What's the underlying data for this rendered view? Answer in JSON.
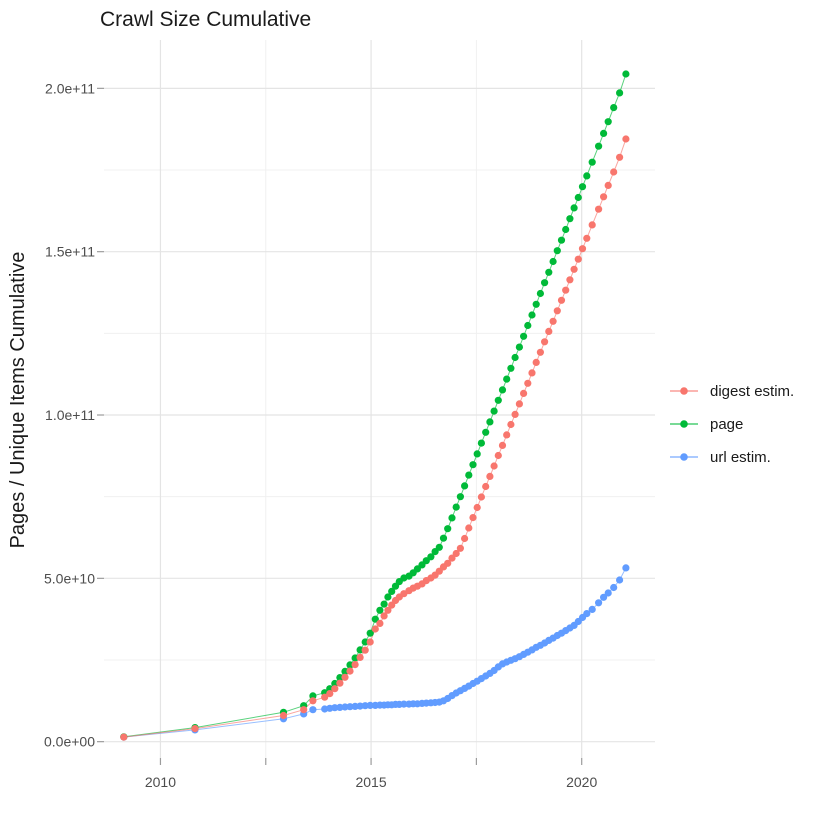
{
  "figure": {
    "background": "#FFFFFF"
  },
  "chart_data": {
    "type": "scatter",
    "title": "Crawl Size Cumulative",
    "xlabel": "",
    "ylabel": "Pages / Unique Items Cumulative",
    "values_unit": "1e10 pages/items (y values below are in units of 1e10)",
    "grid": true,
    "legend_position": "right",
    "x_axis": {
      "domain": [
        2008.66,
        2021.74
      ],
      "major_breaks": [
        2010,
        2015,
        2020
      ],
      "major_labels": [
        "2010",
        "2015",
        "2020"
      ],
      "minor_breaks": [
        2012.5,
        2017.5
      ]
    },
    "y_axis": {
      "domain": [
        -0.5,
        21.48
      ],
      "major_breaks": [
        0,
        5,
        10,
        15,
        20
      ],
      "major_labels": [
        "0.0e+00",
        "5.0e+10",
        "1.0e+11",
        "1.5e+11",
        "2.0e+11"
      ],
      "minor_breaks": [
        2.5,
        7.5,
        12.5,
        17.5
      ]
    },
    "colors": {
      "digest": "#F8766D",
      "page": "#00BA38",
      "url": "#619CFF"
    },
    "grid_major_color": "#E4E4E4",
    "grid_minor_color": "#F0F0F0",
    "tick_color": "#9c9c9c",
    "series": [
      {
        "name": "digest estim.",
        "color": "#F8766D",
        "points": [
          [
            2009.13,
            0.14
          ],
          [
            2010.82,
            0.4
          ],
          [
            2012.92,
            0.8
          ],
          [
            2013.4,
            0.98
          ],
          [
            2013.62,
            1.25
          ],
          [
            2013.9,
            1.36
          ],
          [
            2014.02,
            1.47
          ],
          [
            2014.14,
            1.62
          ],
          [
            2014.26,
            1.79
          ],
          [
            2014.38,
            1.97
          ],
          [
            2014.5,
            2.16
          ],
          [
            2014.62,
            2.36
          ],
          [
            2014.74,
            2.58
          ],
          [
            2014.86,
            2.8
          ],
          [
            2014.98,
            3.05
          ],
          [
            2015.1,
            3.45
          ],
          [
            2015.21,
            3.62
          ],
          [
            2015.31,
            3.85
          ],
          [
            2015.4,
            4.02
          ],
          [
            2015.49,
            4.18
          ],
          [
            2015.58,
            4.32
          ],
          [
            2015.67,
            4.43
          ],
          [
            2015.78,
            4.53
          ],
          [
            2015.9,
            4.62
          ],
          [
            2016.0,
            4.7
          ],
          [
            2016.1,
            4.76
          ],
          [
            2016.21,
            4.83
          ],
          [
            2016.31,
            4.93
          ],
          [
            2016.42,
            5.01
          ],
          [
            2016.52,
            5.1
          ],
          [
            2016.62,
            5.22
          ],
          [
            2016.72,
            5.35
          ],
          [
            2016.82,
            5.46
          ],
          [
            2016.92,
            5.62
          ],
          [
            2017.02,
            5.76
          ],
          [
            2017.12,
            5.92
          ],
          [
            2017.22,
            6.22
          ],
          [
            2017.32,
            6.54
          ],
          [
            2017.42,
            6.86
          ],
          [
            2017.52,
            7.17
          ],
          [
            2017.62,
            7.49
          ],
          [
            2017.72,
            7.81
          ],
          [
            2017.82,
            8.12
          ],
          [
            2017.92,
            8.44
          ],
          [
            2018.02,
            8.76
          ],
          [
            2018.12,
            9.07
          ],
          [
            2018.22,
            9.39
          ],
          [
            2018.32,
            9.71
          ],
          [
            2018.42,
            10.02
          ],
          [
            2018.52,
            10.34
          ],
          [
            2018.62,
            10.66
          ],
          [
            2018.72,
            10.97
          ],
          [
            2018.82,
            11.29
          ],
          [
            2018.92,
            11.61
          ],
          [
            2019.02,
            11.92
          ],
          [
            2019.12,
            12.24
          ],
          [
            2019.22,
            12.56
          ],
          [
            2019.32,
            12.87
          ],
          [
            2019.42,
            13.19
          ],
          [
            2019.52,
            13.51
          ],
          [
            2019.62,
            13.82
          ],
          [
            2019.72,
            14.14
          ],
          [
            2019.82,
            14.46
          ],
          [
            2019.92,
            14.77
          ],
          [
            2020.02,
            15.09
          ],
          [
            2020.12,
            15.41
          ],
          [
            2020.25,
            15.82
          ],
          [
            2020.4,
            16.3
          ],
          [
            2020.52,
            16.68
          ],
          [
            2020.63,
            17.03
          ],
          [
            2020.76,
            17.44
          ],
          [
            2020.9,
            17.89
          ],
          [
            2021.05,
            18.45
          ]
        ]
      },
      {
        "name": "page",
        "color": "#00BA38",
        "points": [
          [
            2009.13,
            0.15
          ],
          [
            2010.82,
            0.43
          ],
          [
            2012.92,
            0.9
          ],
          [
            2013.4,
            1.1
          ],
          [
            2013.62,
            1.4
          ],
          [
            2013.9,
            1.5
          ],
          [
            2014.02,
            1.62
          ],
          [
            2014.14,
            1.78
          ],
          [
            2014.26,
            1.96
          ],
          [
            2014.38,
            2.15
          ],
          [
            2014.5,
            2.35
          ],
          [
            2014.62,
            2.56
          ],
          [
            2014.74,
            2.81
          ],
          [
            2014.86,
            3.05
          ],
          [
            2014.98,
            3.32
          ],
          [
            2015.1,
            3.75
          ],
          [
            2015.21,
            4.02
          ],
          [
            2015.31,
            4.21
          ],
          [
            2015.4,
            4.43
          ],
          [
            2015.49,
            4.6
          ],
          [
            2015.58,
            4.76
          ],
          [
            2015.67,
            4.9
          ],
          [
            2015.78,
            5.01
          ],
          [
            2015.9,
            5.07
          ],
          [
            2016.0,
            5.17
          ],
          [
            2016.1,
            5.29
          ],
          [
            2016.21,
            5.41
          ],
          [
            2016.31,
            5.54
          ],
          [
            2016.42,
            5.66
          ],
          [
            2016.52,
            5.82
          ],
          [
            2016.62,
            5.95
          ],
          [
            2016.72,
            6.23
          ],
          [
            2016.82,
            6.52
          ],
          [
            2016.92,
            6.85
          ],
          [
            2017.02,
            7.18
          ],
          [
            2017.12,
            7.5
          ],
          [
            2017.22,
            7.83
          ],
          [
            2017.32,
            8.16
          ],
          [
            2017.42,
            8.48
          ],
          [
            2017.52,
            8.81
          ],
          [
            2017.62,
            9.14
          ],
          [
            2017.72,
            9.47
          ],
          [
            2017.82,
            9.79
          ],
          [
            2017.92,
            10.12
          ],
          [
            2018.02,
            10.45
          ],
          [
            2018.12,
            10.77
          ],
          [
            2018.22,
            11.1
          ],
          [
            2018.32,
            11.43
          ],
          [
            2018.42,
            11.76
          ],
          [
            2018.52,
            12.08
          ],
          [
            2018.62,
            12.41
          ],
          [
            2018.72,
            12.74
          ],
          [
            2018.82,
            13.06
          ],
          [
            2018.92,
            13.39
          ],
          [
            2019.02,
            13.72
          ],
          [
            2019.12,
            14.05
          ],
          [
            2019.22,
            14.37
          ],
          [
            2019.32,
            14.7
          ],
          [
            2019.42,
            15.03
          ],
          [
            2019.52,
            15.35
          ],
          [
            2019.62,
            15.68
          ],
          [
            2019.72,
            16.01
          ],
          [
            2019.82,
            16.34
          ],
          [
            2019.92,
            16.66
          ],
          [
            2020.02,
            16.99
          ],
          [
            2020.12,
            17.32
          ],
          [
            2020.25,
            17.74
          ],
          [
            2020.4,
            18.23
          ],
          [
            2020.52,
            18.62
          ],
          [
            2020.63,
            18.98
          ],
          [
            2020.76,
            19.41
          ],
          [
            2020.9,
            19.86
          ],
          [
            2021.05,
            20.44
          ]
        ]
      },
      {
        "name": "url estim.",
        "color": "#619CFF",
        "points": [
          [
            2009.13,
            0.14
          ],
          [
            2010.82,
            0.36
          ],
          [
            2012.92,
            0.7
          ],
          [
            2013.4,
            0.85
          ],
          [
            2013.62,
            0.98
          ],
          [
            2013.9,
            1.0
          ],
          [
            2014.02,
            1.02
          ],
          [
            2014.14,
            1.04
          ],
          [
            2014.26,
            1.05
          ],
          [
            2014.38,
            1.06
          ],
          [
            2014.5,
            1.07
          ],
          [
            2014.62,
            1.08
          ],
          [
            2014.74,
            1.09
          ],
          [
            2014.86,
            1.1
          ],
          [
            2014.98,
            1.11
          ],
          [
            2015.1,
            1.11
          ],
          [
            2015.21,
            1.12
          ],
          [
            2015.31,
            1.12
          ],
          [
            2015.4,
            1.13
          ],
          [
            2015.49,
            1.13
          ],
          [
            2015.58,
            1.14
          ],
          [
            2015.67,
            1.14
          ],
          [
            2015.78,
            1.15
          ],
          [
            2015.9,
            1.15
          ],
          [
            2016.0,
            1.16
          ],
          [
            2016.1,
            1.16
          ],
          [
            2016.21,
            1.17
          ],
          [
            2016.31,
            1.18
          ],
          [
            2016.42,
            1.19
          ],
          [
            2016.52,
            1.2
          ],
          [
            2016.62,
            1.21
          ],
          [
            2016.72,
            1.25
          ],
          [
            2016.82,
            1.32
          ],
          [
            2016.92,
            1.41
          ],
          [
            2017.02,
            1.49
          ],
          [
            2017.12,
            1.56
          ],
          [
            2017.22,
            1.63
          ],
          [
            2017.32,
            1.7
          ],
          [
            2017.42,
            1.78
          ],
          [
            2017.52,
            1.85
          ],
          [
            2017.62,
            1.93
          ],
          [
            2017.72,
            2.01
          ],
          [
            2017.82,
            2.09
          ],
          [
            2017.92,
            2.18
          ],
          [
            2018.02,
            2.29
          ],
          [
            2018.12,
            2.38
          ],
          [
            2018.22,
            2.44
          ],
          [
            2018.32,
            2.49
          ],
          [
            2018.42,
            2.54
          ],
          [
            2018.52,
            2.6
          ],
          [
            2018.62,
            2.67
          ],
          [
            2018.72,
            2.74
          ],
          [
            2018.82,
            2.81
          ],
          [
            2018.92,
            2.89
          ],
          [
            2019.02,
            2.95
          ],
          [
            2019.12,
            3.02
          ],
          [
            2019.22,
            3.1
          ],
          [
            2019.32,
            3.17
          ],
          [
            2019.42,
            3.25
          ],
          [
            2019.52,
            3.32
          ],
          [
            2019.62,
            3.4
          ],
          [
            2019.72,
            3.48
          ],
          [
            2019.82,
            3.56
          ],
          [
            2019.92,
            3.68
          ],
          [
            2020.02,
            3.8
          ],
          [
            2020.12,
            3.92
          ],
          [
            2020.25,
            4.05
          ],
          [
            2020.4,
            4.25
          ],
          [
            2020.52,
            4.42
          ],
          [
            2020.63,
            4.55
          ],
          [
            2020.76,
            4.72
          ],
          [
            2020.9,
            4.95
          ],
          [
            2021.05,
            5.32
          ]
        ]
      }
    ]
  }
}
